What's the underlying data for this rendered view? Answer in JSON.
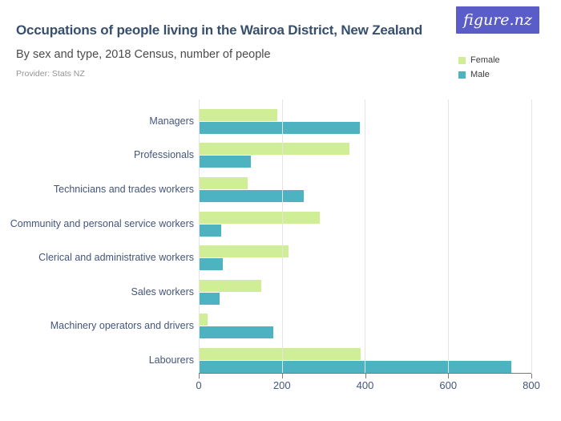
{
  "header": {
    "title": "Occupations of people living in the Wairoa District, New Zealand",
    "subtitle": "By sex and type, 2018 Census, number of people",
    "provider": "Provider: Stats NZ",
    "logo_text": "figure.nz"
  },
  "legend": [
    {
      "label": "Female",
      "color": "#cfee96"
    },
    {
      "label": "Male",
      "color": "#4db3c0"
    }
  ],
  "colors": {
    "female": "#cfee96",
    "male": "#4db3c0",
    "title_text": "#374f6d",
    "axis_label_text": "#44557c",
    "gridline": "#e4e4e4",
    "axis_line": "#7a7a7a",
    "logo_background": "#5a5cc8"
  },
  "chart_data": {
    "type": "bar",
    "orientation": "horizontal",
    "title": "Occupations of people living in the Wairoa District, New Zealand",
    "subtitle": "By sex and type, 2018 Census, number of people",
    "categories": [
      "Managers",
      "Professionals",
      "Technicians and trades workers",
      "Community and personal service workers",
      "Clerical and administrative workers",
      "Sales workers",
      "Machinery operators and drivers",
      "Labourers"
    ],
    "series": [
      {
        "name": "Female",
        "color": "#cfee96",
        "values": [
          189,
          363,
          117,
          291,
          216,
          150,
          21,
          390
        ]
      },
      {
        "name": "Male",
        "color": "#4db3c0",
        "values": [
          387,
          126,
          252,
          54,
          57,
          51,
          180,
          753
        ]
      }
    ],
    "xlabel": "",
    "ylabel": "",
    "xlim": [
      0,
      822
    ],
    "xticks": [
      0,
      200,
      400,
      600,
      800
    ],
    "grid": "vertical",
    "legend_position": "top-right"
  }
}
